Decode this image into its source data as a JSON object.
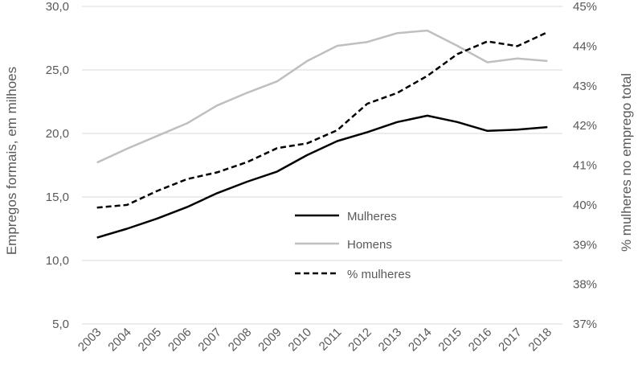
{
  "chart_data": {
    "type": "line",
    "title": "",
    "xlabel": "",
    "ylabel": "Empregos formais, em milhoes",
    "y2label": "% mulheres no emprego total",
    "categories": [
      "2003",
      "2004",
      "2005",
      "2006",
      "2007",
      "2008",
      "2009",
      "2010",
      "2011",
      "2012",
      "2013",
      "2014",
      "2015",
      "2016",
      "2017",
      "2018"
    ],
    "ylim": [
      5,
      30
    ],
    "y_ticks": [
      "5,0",
      "10,0",
      "15,0",
      "20,0",
      "25,0",
      "30,0"
    ],
    "y2lim": [
      37,
      45
    ],
    "y2_ticks": [
      "37%",
      "38%",
      "39%",
      "40%",
      "41%",
      "42%",
      "43%",
      "44%",
      "45%"
    ],
    "grid": true,
    "legend_position": "center",
    "series": [
      {
        "name": "Mulheres",
        "axis": "left",
        "color": "#000000",
        "style": "solid",
        "values": [
          11.8,
          12.5,
          13.3,
          14.2,
          15.3,
          16.2,
          17.0,
          18.3,
          19.4,
          20.1,
          20.9,
          21.4,
          20.9,
          20.2,
          20.3,
          20.5
        ]
      },
      {
        "name": "Homens",
        "axis": "left",
        "color": "#bfbfbf",
        "style": "solid",
        "values": [
          17.7,
          18.8,
          19.8,
          20.8,
          22.2,
          23.2,
          24.1,
          25.7,
          26.9,
          27.2,
          27.9,
          28.1,
          26.9,
          25.6,
          25.9,
          25.7
        ]
      },
      {
        "name": "% mulheres",
        "axis": "right",
        "color": "#000000",
        "style": "dashed",
        "values": [
          39.93,
          40.0,
          40.35,
          40.65,
          40.82,
          41.08,
          41.43,
          41.55,
          41.88,
          42.55,
          42.82,
          43.25,
          43.8,
          44.12,
          44.0,
          44.35
        ]
      }
    ]
  }
}
